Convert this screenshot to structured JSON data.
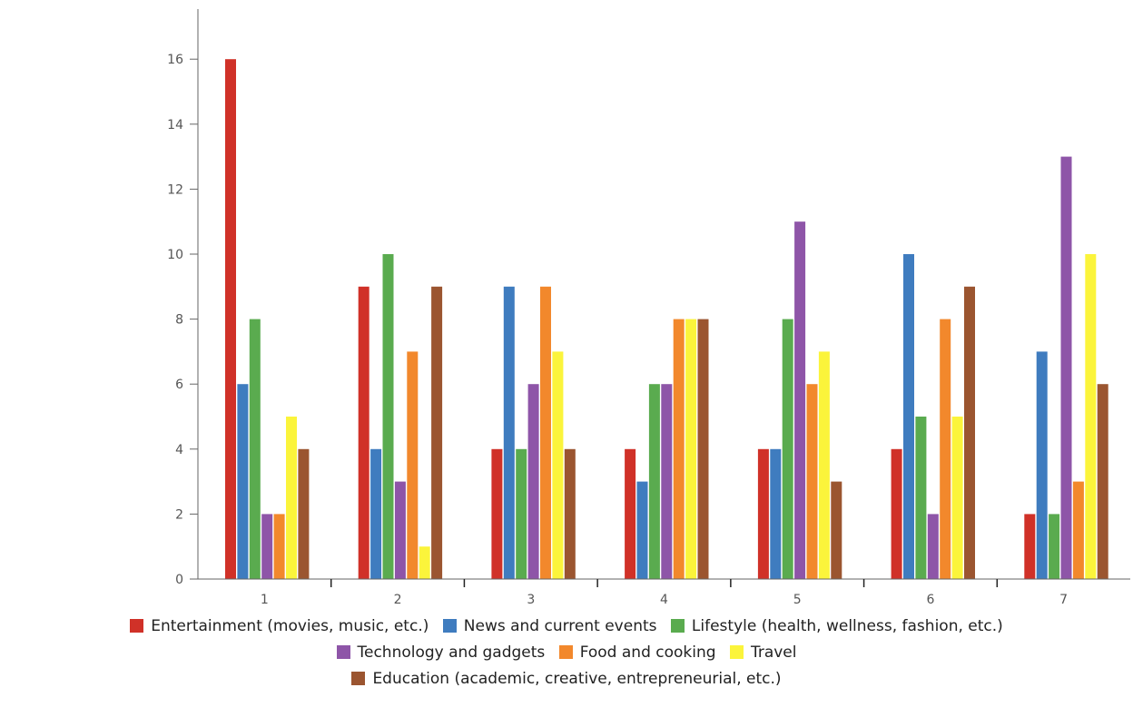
{
  "chart_data": {
    "type": "bar",
    "title": "",
    "xlabel": "",
    "ylabel": "",
    "categories": [
      "1",
      "2",
      "3",
      "4",
      "5",
      "6",
      "7"
    ],
    "ylim": [
      0,
      17
    ],
    "yticks": [
      "0",
      "2",
      "4",
      "6",
      "8",
      "10",
      "12",
      "14",
      "16"
    ],
    "legend_position": "bottom",
    "series": [
      {
        "name": "Entertainment (movies, music, etc.)",
        "color": "#d03128",
        "values": [
          16,
          9,
          4,
          4,
          4,
          4,
          2
        ]
      },
      {
        "name": "News and current events",
        "color": "#3f7cbf",
        "values": [
          6,
          4,
          9,
          3,
          4,
          10,
          7
        ]
      },
      {
        "name": "Lifestyle (health, wellness, fashion, etc.)",
        "color": "#5aab4f",
        "values": [
          8,
          10,
          4,
          6,
          8,
          5,
          2
        ]
      },
      {
        "name": "Technology and gadgets",
        "color": "#8e55a8",
        "values": [
          2,
          3,
          6,
          6,
          11,
          2,
          13
        ]
      },
      {
        "name": "Food and cooking",
        "color": "#f2882c",
        "values": [
          2,
          7,
          9,
          8,
          6,
          8,
          3
        ]
      },
      {
        "name": "Travel",
        "color": "#fbf43b",
        "values": [
          5,
          1,
          7,
          8,
          7,
          5,
          10
        ]
      },
      {
        "name": "Education (academic, creative, entrepreneurial, etc.)",
        "color": "#9b5530",
        "values": [
          4,
          9,
          4,
          8,
          3,
          9,
          6
        ]
      }
    ]
  }
}
